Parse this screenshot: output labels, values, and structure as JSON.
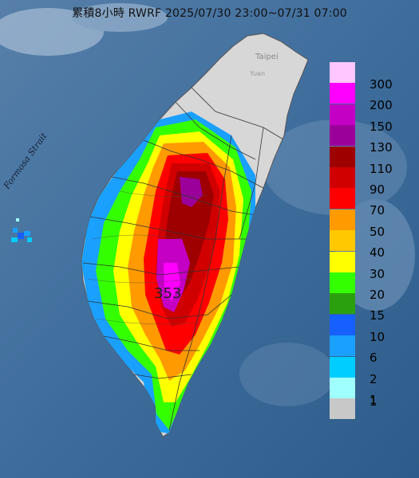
{
  "title": "累積8小時 RWRF 2025/07/30 23:00~07/31 07:00",
  "labels": {
    "strait": "Formosa Strait",
    "city": "Taipei",
    "city_small": "Yuan",
    "max_value": "353"
  },
  "legend": {
    "items": [
      {
        "label": "300",
        "color": "#ffc6ff"
      },
      {
        "label": "200",
        "color": "#ff00ff"
      },
      {
        "label": "150",
        "color": "#c400c4"
      },
      {
        "label": "130",
        "color": "#9b009b"
      },
      {
        "label": "110",
        "color": "#9e0000"
      },
      {
        "label": "90",
        "color": "#d10000"
      },
      {
        "label": "70",
        "color": "#ff0000"
      },
      {
        "label": "50",
        "color": "#ff9a00"
      },
      {
        "label": "40",
        "color": "#ffc800"
      },
      {
        "label": "30",
        "color": "#ffff00"
      },
      {
        "label": "20",
        "color": "#33ff00"
      },
      {
        "label": "15",
        "color": "#2aa00f"
      },
      {
        "label": "10",
        "color": "#1660ff"
      },
      {
        "label": "6",
        "color": "#1aa0ff"
      },
      {
        "label": "2",
        "color": "#00cdff"
      },
      {
        "label": "1",
        "color": "#a0ffff"
      },
      {
        "label": "",
        "color": "#c8c8c8"
      }
    ],
    "bottom_label": "1"
  },
  "colors": {
    "sea": "#3e6f9e",
    "land_no_rain": "#d7d7d7"
  }
}
